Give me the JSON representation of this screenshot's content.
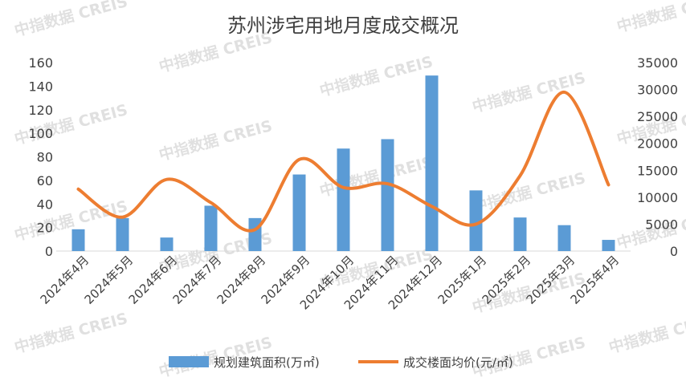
{
  "chart_data": {
    "type": "bar+line",
    "title": "苏州涉宅用地月度成交概况",
    "categories": [
      "2024年4月",
      "2024年5月",
      "2024年6月",
      "2024年7月",
      "2024年8月",
      "2024年9月",
      "2024年10月",
      "2024年11月",
      "2024年12月",
      "2025年1月",
      "2025年2月",
      "2025年3月",
      "2025年4月"
    ],
    "series": [
      {
        "name": "规划建筑面积(万㎡)",
        "type": "bar",
        "axis": "left",
        "color": "#5b9bd5",
        "values": [
          18.5,
          28,
          11.5,
          38.5,
          28,
          65,
          87,
          95,
          149,
          51.5,
          28.5,
          22,
          9.5
        ]
      },
      {
        "name": "成交楼面均价(元/㎡)",
        "type": "line",
        "axis": "right",
        "color": "#ed7d31",
        "smooth": true,
        "values": [
          11500,
          6300,
          13300,
          9000,
          4000,
          17000,
          11800,
          12500,
          8300,
          5000,
          14000,
          29500,
          12300
        ]
      }
    ],
    "y_left": {
      "min": 0,
      "max": 160,
      "ticks": [
        0,
        20,
        40,
        60,
        80,
        100,
        120,
        140,
        160
      ]
    },
    "y_right": {
      "min": 0,
      "max": 35000,
      "ticks": [
        0,
        5000,
        10000,
        15000,
        20000,
        25000,
        30000,
        35000
      ]
    },
    "grid": false,
    "legend_position": "bottom"
  },
  "watermark": {
    "text": "中指数据 CREIS"
  }
}
